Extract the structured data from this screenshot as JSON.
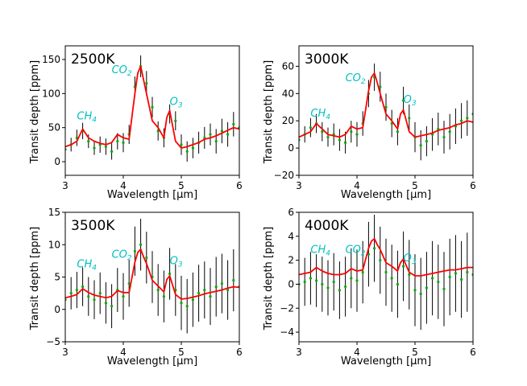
{
  "figure": {
    "colors": {
      "model": "#ff0000",
      "data": "#00aa00",
      "errorbar": "#000000",
      "annotation": "#00bfbf"
    }
  },
  "chart_data": [
    {
      "type": "line",
      "title": "2500K",
      "xlabel": "Wavelength [μm]",
      "ylabel": "Transit depth [ppm]",
      "xlim": [
        3,
        6
      ],
      "ylim": [
        -20,
        170
      ],
      "xticks": [
        "3",
        "4",
        "5",
        "6"
      ],
      "yticks": [
        "0",
        "50",
        "100",
        "150"
      ],
      "annotations": [
        {
          "base": "CH",
          "sub": "4",
          "x": 3.2,
          "y": 62
        },
        {
          "base": "CO",
          "sub": "2",
          "x": 3.8,
          "y": 130
        },
        {
          "base": "O",
          "sub": "3",
          "x": 4.8,
          "y": 83
        }
      ],
      "model": {
        "x": [
          3.0,
          3.1,
          3.2,
          3.3,
          3.4,
          3.5,
          3.6,
          3.7,
          3.8,
          3.9,
          4.0,
          4.1,
          4.2,
          4.25,
          4.3,
          4.35,
          4.4,
          4.5,
          4.6,
          4.7,
          4.75,
          4.8,
          4.9,
          5.0,
          5.1,
          5.2,
          5.3,
          5.4,
          5.5,
          5.6,
          5.7,
          5.8,
          5.9,
          6.0
        ],
        "y": [
          22,
          25,
          30,
          48,
          35,
          30,
          27,
          25,
          28,
          40,
          35,
          33,
          100,
          130,
          140,
          120,
          100,
          60,
          50,
          35,
          65,
          75,
          30,
          20,
          22,
          25,
          28,
          33,
          35,
          38,
          42,
          46,
          50,
          48
        ]
      },
      "observations": {
        "x": [
          3.0,
          3.1,
          3.2,
          3.3,
          3.4,
          3.5,
          3.6,
          3.7,
          3.8,
          3.9,
          4.0,
          4.1,
          4.2,
          4.3,
          4.4,
          4.5,
          4.6,
          4.7,
          4.8,
          4.9,
          5.0,
          5.1,
          5.2,
          5.3,
          5.4,
          5.5,
          5.6,
          5.7,
          5.8,
          5.9,
          6.0
        ],
        "y": [
          18,
          25,
          35,
          45,
          30,
          20,
          25,
          22,
          15,
          30,
          28,
          40,
          110,
          140,
          115,
          80,
          45,
          35,
          70,
          60,
          25,
          15,
          20,
          28,
          35,
          40,
          30,
          45,
          40,
          55,
          50
        ],
        "err": [
          10,
          10,
          12,
          12,
          10,
          10,
          12,
          12,
          12,
          12,
          14,
          14,
          15,
          16,
          18,
          15,
          14,
          14,
          14,
          14,
          15,
          15,
          15,
          16,
          16,
          16,
          18,
          18,
          18,
          18,
          18
        ]
      }
    },
    {
      "type": "line",
      "title": "3000K",
      "xlabel": "Wavelength [μm]",
      "ylabel": "Transit depth [ppm]",
      "xlim": [
        3,
        6
      ],
      "ylim": [
        -20,
        75
      ],
      "xticks": [
        "3",
        "4",
        "5",
        "6"
      ],
      "yticks": [
        "−20",
        "0",
        "20",
        "40",
        "60"
      ],
      "annotations": [
        {
          "base": "CH",
          "sub": "4",
          "x": 3.2,
          "y": 23
        },
        {
          "base": "CO",
          "sub": "2",
          "x": 3.8,
          "y": 49
        },
        {
          "base": "O",
          "sub": "3",
          "x": 4.8,
          "y": 33
        }
      ],
      "model": {
        "x": [
          3.0,
          3.1,
          3.2,
          3.3,
          3.4,
          3.5,
          3.6,
          3.7,
          3.8,
          3.9,
          4.0,
          4.1,
          4.2,
          4.25,
          4.3,
          4.35,
          4.4,
          4.5,
          4.6,
          4.7,
          4.75,
          4.8,
          4.9,
          5.0,
          5.1,
          5.2,
          5.3,
          5.4,
          5.5,
          5.6,
          5.7,
          5.8,
          5.9,
          6.0
        ],
        "y": [
          8,
          10,
          12,
          18,
          14,
          10,
          9,
          8,
          10,
          16,
          14,
          15,
          42,
          52,
          55,
          48,
          40,
          25,
          20,
          14,
          25,
          28,
          12,
          8,
          9,
          10,
          11,
          13,
          14,
          15,
          17,
          18,
          20,
          19
        ]
      },
      "observations": {
        "x": [
          3.0,
          3.1,
          3.2,
          3.3,
          3.4,
          3.5,
          3.6,
          3.7,
          3.8,
          3.9,
          4.0,
          4.1,
          4.2,
          4.3,
          4.4,
          4.5,
          4.6,
          4.7,
          4.8,
          4.9,
          5.0,
          5.1,
          5.2,
          5.3,
          5.4,
          5.5,
          5.6,
          5.7,
          5.8,
          5.9,
          6.0
        ],
        "y": [
          6,
          10,
          15,
          18,
          12,
          8,
          10,
          6,
          4,
          12,
          10,
          18,
          40,
          52,
          45,
          30,
          18,
          12,
          35,
          22,
          8,
          2,
          5,
          10,
          14,
          8,
          12,
          16,
          20,
          22,
          25
        ],
        "err": [
          6,
          6,
          7,
          7,
          7,
          7,
          8,
          8,
          8,
          8,
          9,
          9,
          10,
          10,
          11,
          10,
          10,
          10,
          10,
          10,
          11,
          11,
          11,
          12,
          12,
          12,
          13,
          13,
          13,
          13,
          14
        ]
      }
    },
    {
      "type": "line",
      "title": "3500K",
      "xlabel": "Wavelength [μm]",
      "ylabel": "Transit depth [ppm]",
      "xlim": [
        3,
        6
      ],
      "ylim": [
        -5,
        15
      ],
      "xticks": [
        "3",
        "4",
        "5",
        "6"
      ],
      "yticks": [
        "−5",
        "0",
        "5",
        "10",
        "15"
      ],
      "annotations": [
        {
          "base": "CH",
          "sub": "4",
          "x": 3.2,
          "y": 6.5
        },
        {
          "base": "CO",
          "sub": "2",
          "x": 3.8,
          "y": 8.0
        },
        {
          "base": "O",
          "sub": "3",
          "x": 4.8,
          "y": 7.0
        }
      ],
      "model": {
        "x": [
          3.0,
          3.1,
          3.2,
          3.3,
          3.4,
          3.5,
          3.6,
          3.7,
          3.8,
          3.9,
          4.0,
          4.1,
          4.2,
          4.25,
          4.3,
          4.35,
          4.4,
          4.5,
          4.6,
          4.7,
          4.75,
          4.8,
          4.9,
          5.0,
          5.1,
          5.2,
          5.3,
          5.4,
          5.5,
          5.6,
          5.7,
          5.8,
          5.9,
          6.0
        ],
        "y": [
          1.8,
          2.0,
          2.3,
          3.2,
          2.6,
          2.2,
          2.0,
          1.8,
          2.0,
          2.9,
          2.6,
          2.6,
          7.3,
          8.8,
          9.3,
          8.1,
          7.1,
          4.5,
          3.6,
          2.7,
          4.6,
          5.2,
          2.3,
          1.6,
          1.7,
          1.9,
          2.1,
          2.4,
          2.6,
          2.8,
          3.0,
          3.3,
          3.5,
          3.4
        ]
      },
      "observations": {
        "x": [
          3.0,
          3.1,
          3.2,
          3.3,
          3.4,
          3.5,
          3.6,
          3.7,
          3.8,
          3.9,
          4.0,
          4.1,
          4.2,
          4.3,
          4.4,
          4.5,
          4.6,
          4.7,
          4.8,
          4.9,
          5.0,
          5.1,
          5.2,
          5.3,
          5.4,
          5.5,
          5.6,
          5.7,
          5.8,
          5.9,
          6.0
        ],
        "y": [
          1.5,
          2.5,
          3.0,
          3.5,
          2.0,
          1.5,
          2.5,
          1.0,
          0.5,
          3.0,
          2.0,
          4.0,
          9.0,
          10.0,
          8.0,
          5.0,
          3.0,
          2.0,
          5.5,
          3.0,
          1.0,
          0.5,
          1.5,
          2.5,
          3.0,
          2.0,
          3.5,
          4.0,
          3.0,
          4.5,
          3.5
        ],
        "err": [
          2.5,
          2.5,
          2.8,
          3.0,
          3.0,
          3.0,
          3.2,
          3.2,
          3.4,
          3.4,
          3.6,
          3.6,
          3.8,
          4.0,
          4.0,
          4.0,
          4.0,
          4.0,
          4.0,
          4.0,
          4.2,
          4.2,
          4.2,
          4.4,
          4.4,
          4.4,
          4.6,
          4.6,
          4.6,
          4.8,
          4.8
        ]
      }
    },
    {
      "type": "line",
      "title": "4000K",
      "xlabel": "Wavelength [μm]",
      "ylabel": "Transit depth [ppm]",
      "xlim": [
        3,
        6
      ],
      "ylim": [
        -4.8,
        6
      ],
      "xticks": [
        "3",
        "4",
        "5",
        "6"
      ],
      "yticks": [
        "−4",
        "−2",
        "0",
        "2",
        "4",
        "6"
      ],
      "annotations": [
        {
          "base": "CH",
          "sub": "4",
          "x": 3.2,
          "y": 2.6
        },
        {
          "base": "CO",
          "sub": "2",
          "x": 3.8,
          "y": 2.6
        },
        {
          "base": "O",
          "sub": "3",
          "x": 4.8,
          "y": 1.9
        }
      ],
      "model": {
        "x": [
          3.0,
          3.1,
          3.2,
          3.3,
          3.4,
          3.5,
          3.6,
          3.7,
          3.8,
          3.9,
          4.0,
          4.1,
          4.2,
          4.25,
          4.3,
          4.35,
          4.4,
          4.5,
          4.6,
          4.7,
          4.75,
          4.8,
          4.9,
          5.0,
          5.1,
          5.2,
          5.3,
          5.4,
          5.5,
          5.6,
          5.7,
          5.8,
          5.9,
          6.0
        ],
        "y": [
          0.8,
          0.9,
          1.0,
          1.4,
          1.1,
          0.9,
          0.8,
          0.8,
          0.9,
          1.3,
          1.1,
          1.2,
          3.0,
          3.6,
          3.8,
          3.3,
          2.9,
          1.8,
          1.5,
          1.1,
          1.8,
          2.1,
          1.0,
          0.7,
          0.7,
          0.8,
          0.9,
          1.0,
          1.1,
          1.2,
          1.2,
          1.3,
          1.4,
          1.4
        ]
      },
      "observations": {
        "x": [
          3.0,
          3.1,
          3.2,
          3.3,
          3.4,
          3.5,
          3.6,
          3.7,
          3.8,
          3.9,
          4.0,
          4.1,
          4.2,
          4.3,
          4.4,
          4.5,
          4.6,
          4.7,
          4.8,
          4.9,
          5.0,
          5.1,
          5.2,
          5.3,
          5.4,
          5.5,
          5.6,
          5.7,
          5.8,
          5.9,
          6.0
        ],
        "y": [
          0.0,
          0.2,
          0.5,
          0.3,
          0.0,
          -0.3,
          0.2,
          -0.5,
          -0.2,
          0.5,
          0.3,
          1.0,
          2.5,
          3.0,
          2.0,
          1.0,
          0.5,
          0.0,
          1.5,
          0.8,
          -0.5,
          -0.8,
          -0.3,
          0.5,
          0.2,
          -0.4,
          0.6,
          0.9,
          0.4,
          1.0,
          0.8
        ],
        "err": [
          2.0,
          2.0,
          2.2,
          2.2,
          2.3,
          2.3,
          2.4,
          2.4,
          2.5,
          2.5,
          2.6,
          2.6,
          2.7,
          2.8,
          2.8,
          2.8,
          2.8,
          2.8,
          2.9,
          2.9,
          3.0,
          3.0,
          3.0,
          3.1,
          3.1,
          3.1,
          3.2,
          3.2,
          3.2,
          3.3,
          3.3
        ]
      }
    }
  ]
}
